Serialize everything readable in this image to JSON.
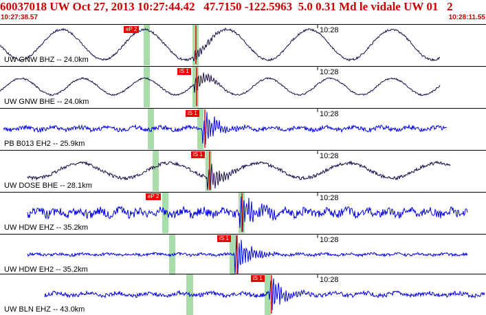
{
  "header": {
    "title": "60037018 UW Oct 27, 2013 10:27:44.42   47.7150 -122.5963  5.0 0.31 Md le vidale UW 01   2",
    "start_time": "10:27:38.57",
    "end_time": "10:28:11.55"
  },
  "colors": {
    "title": "#cc0000",
    "pick": "#ee0000",
    "highpass": "#0000dd",
    "lowpass": "#1a0a4a",
    "window": "#a8dca8"
  },
  "panels": [
    {
      "label": "UW GNW BHZ -- 24.0km",
      "time_label": "10:28",
      "pick": "eP 2"
    },
    {
      "label": "UW GNW BHE -- 24.0km",
      "time_label": "10:28",
      "pick": "iS 1"
    },
    {
      "label": "PB B013 EH2 -- 25.9km",
      "time_label": "10:28",
      "pick": "iS 1"
    },
    {
      "label": "UW DOSE BHE -- 28.1km",
      "time_label": "10:28",
      "pick": "iS 1"
    },
    {
      "label": "UW HDW EHZ -- 35.2km",
      "time_label": "10:28",
      "pick": "eP 2"
    },
    {
      "label": "UW HDW EH2 -- 35.2km",
      "time_label": "10:28",
      "pick": "iS 1"
    },
    {
      "label": "UW BLN EHZ -- 43.0km",
      "time_label": "10:28",
      "pick": "iS 1"
    }
  ]
}
